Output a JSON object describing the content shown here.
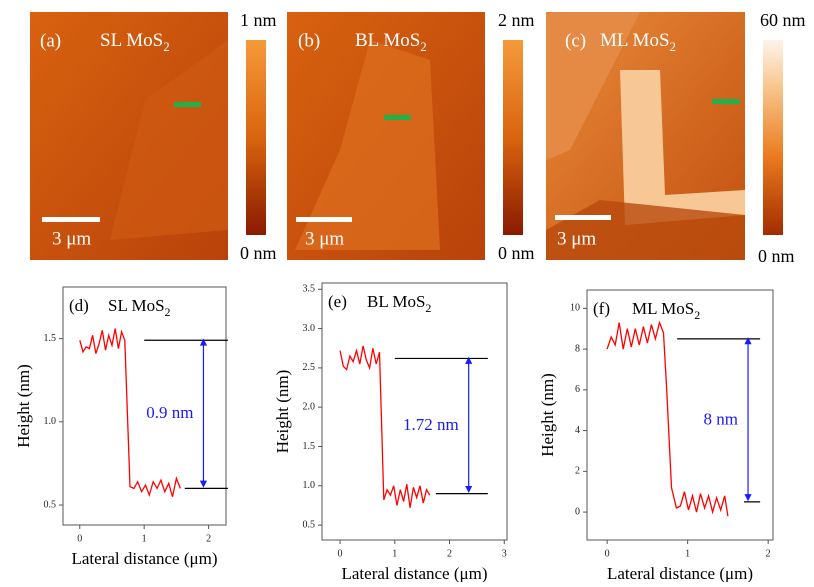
{
  "images": [
    {
      "label": "(a)",
      "title": "SL MoS",
      "title_sub": "2",
      "scale_max": "1 nm",
      "scale_min": "0 nm",
      "scalebar": "3 μm"
    },
    {
      "label": "(b)",
      "title": "BL MoS",
      "title_sub": "2",
      "scale_max": "2 nm",
      "scale_min": "0 nm",
      "scalebar": "3 μm"
    },
    {
      "label": "(c)",
      "title": "ML MoS",
      "title_sub": "2",
      "scale_max": "60 nm",
      "scale_min": "0 nm",
      "scalebar": "3 μm"
    }
  ],
  "chart_data": [
    {
      "type": "line",
      "panel": "(d)",
      "title": "SL MoS",
      "title_sub": "2",
      "xlabel": "Lateral distance (μm)",
      "ylabel": "Height (nm)",
      "xlim": [
        -0.26,
        2.27
      ],
      "ylim": [
        0.38,
        1.81
      ],
      "xticks": [
        0,
        1,
        2
      ],
      "yticks": [
        {
          "value": 0.5,
          "label": "0.5"
        },
        {
          "value": 1.0,
          "label": "1.0"
        },
        {
          "value": 1.5,
          "label": "1.5"
        }
      ],
      "x": [
        0,
        0.05,
        0.1,
        0.15,
        0.2,
        0.25,
        0.3,
        0.35,
        0.4,
        0.45,
        0.5,
        0.55,
        0.6,
        0.65,
        0.7,
        0.78,
        0.84,
        0.9,
        0.96,
        1.02,
        1.08,
        1.14,
        1.2,
        1.26,
        1.32,
        1.38,
        1.44,
        1.5,
        1.56
      ],
      "series": [
        {
          "color": "#ff0000",
          "values": [
            1.49,
            1.42,
            1.45,
            1.44,
            1.52,
            1.41,
            1.47,
            1.55,
            1.43,
            1.52,
            1.46,
            1.56,
            1.44,
            1.54,
            1.49,
            0.61,
            0.6,
            0.64,
            0.58,
            0.62,
            0.56,
            0.64,
            0.6,
            0.65,
            0.58,
            0.63,
            0.55,
            0.66,
            0.6
          ]
        }
      ],
      "levels": [
        1.49,
        0.6
      ],
      "level_starts": [
        1.0,
        1.63
      ],
      "level_end": 2.3,
      "arrow_x": 1.92,
      "annotation": "0.9 nm"
    },
    {
      "type": "line",
      "panel": "(e)",
      "title": "BL MoS",
      "title_sub": "2",
      "xlabel": "Lateral distance (μm)",
      "ylabel": "Height (nm)",
      "xlim": [
        -0.33,
        3.05
      ],
      "ylim": [
        0.31,
        3.58
      ],
      "xticks": [
        0,
        1,
        2,
        3
      ],
      "yticks": [
        {
          "value": 0.5,
          "label": "0.5"
        },
        {
          "value": 1.0,
          "label": "1.0"
        },
        {
          "value": 1.5,
          "label": "1.5"
        },
        {
          "value": 2.0,
          "label": "2.0"
        },
        {
          "value": 2.5,
          "label": "2.5"
        },
        {
          "value": 3.0,
          "label": "3.0"
        },
        {
          "value": 3.5,
          "label": "3.5"
        }
      ],
      "x": [
        0,
        0.06,
        0.12,
        0.18,
        0.24,
        0.3,
        0.36,
        0.42,
        0.48,
        0.54,
        0.6,
        0.66,
        0.72,
        0.8,
        0.86,
        0.92,
        0.98,
        1.04,
        1.1,
        1.16,
        1.22,
        1.28,
        1.34,
        1.4,
        1.46,
        1.52,
        1.58,
        1.64
      ],
      "series": [
        {
          "color": "#ff0000",
          "values": [
            2.72,
            2.52,
            2.48,
            2.65,
            2.58,
            2.72,
            2.55,
            2.78,
            2.6,
            2.5,
            2.75,
            2.55,
            2.7,
            0.82,
            0.95,
            0.88,
            1.0,
            0.75,
            0.95,
            0.8,
            1.02,
            0.72,
            0.98,
            0.85,
            1.0,
            0.78,
            0.95,
            0.88
          ]
        }
      ],
      "levels": [
        2.62,
        0.9
      ],
      "level_starts": [
        1.0,
        1.75
      ],
      "level_end": 2.7,
      "arrow_x": 2.35,
      "annotation": "1.72 nm"
    },
    {
      "type": "line",
      "panel": "(f)",
      "title": "ML MoS",
      "title_sub": "2",
      "xlabel": "Lateral distance (μm)",
      "ylabel": "Height (nm)",
      "xlim": [
        -0.25,
        2.06
      ],
      "ylim": [
        -1.37,
        10.9
      ],
      "xticks": [
        0,
        1,
        2
      ],
      "yticks": [
        0,
        2,
        4,
        6,
        8,
        10
      ],
      "x": [
        0,
        0.05,
        0.1,
        0.15,
        0.2,
        0.25,
        0.3,
        0.35,
        0.4,
        0.45,
        0.5,
        0.55,
        0.6,
        0.65,
        0.7,
        0.74,
        0.8,
        0.86,
        0.91,
        0.96,
        1.01,
        1.06,
        1.11,
        1.16,
        1.21,
        1.26,
        1.31,
        1.36,
        1.41,
        1.46,
        1.5
      ],
      "series": [
        {
          "color": "#ff0000",
          "values": [
            8.0,
            8.6,
            8.2,
            9.3,
            8.0,
            9.0,
            8.1,
            9.0,
            8.2,
            9.1,
            8.3,
            9.2,
            8.5,
            9.3,
            8.8,
            6.0,
            1.2,
            0.2,
            0.3,
            1.0,
            0.1,
            0.8,
            0.0,
            0.9,
            0.2,
            0.8,
            0.0,
            0.7,
            0.1,
            0.8,
            -0.2
          ]
        }
      ],
      "levels": [
        8.5,
        0.5
      ],
      "level_starts": [
        0.87,
        1.7
      ],
      "level_end": 1.9,
      "arrow_x": 1.75,
      "annotation": "8 nm"
    }
  ]
}
